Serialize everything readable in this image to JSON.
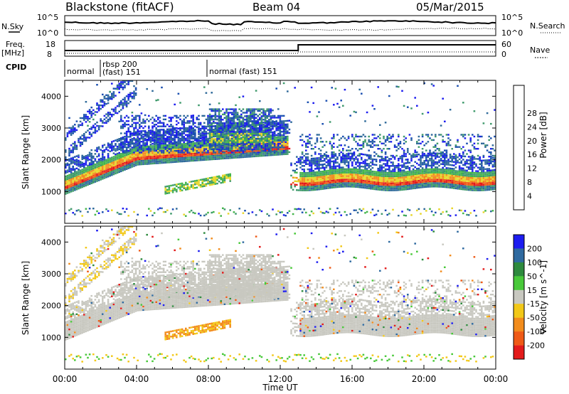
{
  "header": {
    "station": "Blackstone (fitACF)",
    "beam": "Beam 04",
    "date": "05/Mar/2015"
  },
  "top_panels": {
    "nsky_label": "N.Sky",
    "nsky_ticks": [
      "10^5",
      "10^0"
    ],
    "nsearch_label": "N.Search",
    "nsearch_ticks": [
      "10^5",
      "10^0"
    ],
    "freq_label_1": "Freq.",
    "freq_label_2": "[MHz]",
    "freq_ticks": [
      "18",
      "8"
    ],
    "nave_label": "Nave",
    "nave_ticks": [
      "60",
      "0"
    ],
    "cpid_label": "CPID",
    "cpid_segments": [
      {
        "line1": "normal",
        "line2": ""
      },
      {
        "line1": "rbsp 200",
        "line2": "(fast) 151"
      },
      {
        "line1": "normal (fast)  151",
        "line2": ""
      }
    ]
  },
  "panels": {
    "ylabel": "Slant Range [km]",
    "y_ticks": [
      "1000",
      "2000",
      "3000",
      "4000"
    ],
    "power_colorbar": {
      "label": "Power [dB]",
      "ticks": [
        "4",
        "8",
        "12",
        "16",
        "20",
        "24",
        "28"
      ],
      "colors": [
        "#1c1cf0",
        "#1a4fb0",
        "#2f6a9a",
        "#3f9a6c",
        "#43b54a",
        "#e7d62a",
        "#f28c1c",
        "#ef5a16",
        "#e31b1b"
      ]
    },
    "velocity_colorbar": {
      "label": "Velocity [m s^-1]",
      "ticks": [
        "200",
        "100",
        "50",
        "15",
        "-15",
        "-50",
        "-100",
        "-200"
      ],
      "colors": [
        "#1c1cf0",
        "#2f6aa0",
        "#2e8a3e",
        "#49c93a",
        "#c8c8c0",
        "#f2c818",
        "#f28c1c",
        "#ef5a16",
        "#e31b1b"
      ]
    }
  },
  "xaxis": {
    "label": "Time UT",
    "ticks": [
      "00:00",
      "04:00",
      "08:00",
      "12:00",
      "16:00",
      "20:00",
      "00:00"
    ]
  },
  "chart_data": {
    "type": "heatmap",
    "title": "Blackstone (fitACF)  Beam 04  05/Mar/2015",
    "xlabel": "Time UT",
    "ylabel": "Slant Range [km]",
    "xlim": [
      "00:00",
      "24:00"
    ],
    "ylim": [
      0,
      4500
    ],
    "cpid_changes_ut": [
      1.0,
      8.0
    ],
    "frequency_mhz_approx": {
      "before_13UT": 11,
      "after_13UT": 11
    },
    "nave_step_ut": 13.0,
    "power_features": [
      {
        "name": "main band",
        "time_range": [
          "00:00",
          "12:30"
        ],
        "range_km_from": 1000,
        "range_km_to": 2000
      },
      {
        "name": "main band",
        "time_range": [
          "13:00",
          "24:00"
        ],
        "range_km": 1200
      },
      {
        "name": "upper band",
        "time_range": [
          "08:00",
          "11:30"
        ],
        "range_km": 2700
      }
    ],
    "velocity_features": [
      {
        "name": "negative flow patch",
        "time_range": [
          "05:30",
          "09:00"
        ],
        "range_km": 1300,
        "velocity_ms": -80
      },
      {
        "name": "near-zero band",
        "time_range": [
          "13:00",
          "24:00"
        ],
        "range_km": 1600,
        "velocity_ms": 0
      }
    ]
  }
}
